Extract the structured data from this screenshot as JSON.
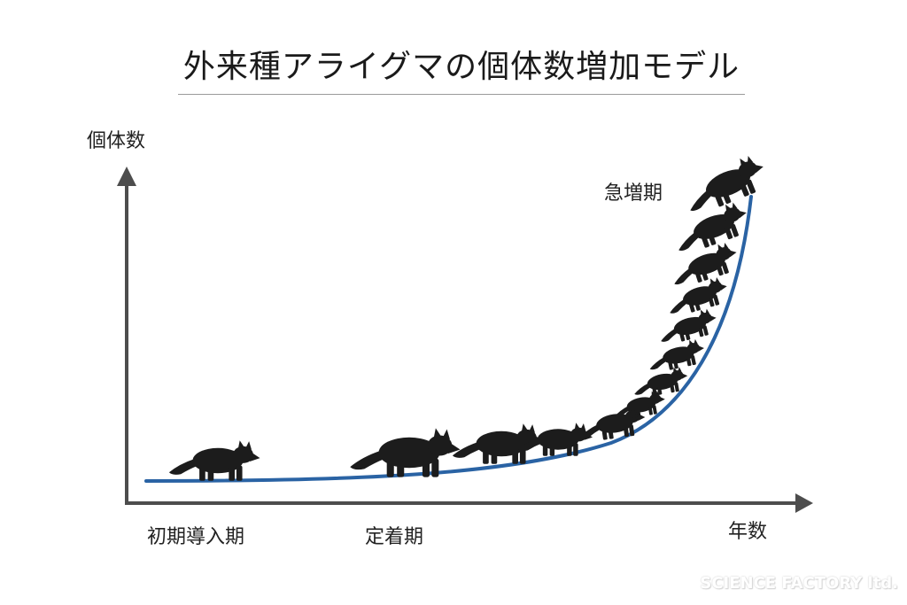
{
  "title": "外来種アライグマの個体数増加モデル",
  "axes": {
    "y_label": "個体数",
    "x_label": "年数"
  },
  "phases": {
    "intro": "初期導入期",
    "settlement": "定着期",
    "rapid_increase": "急増期"
  },
  "watermark": "SCIENCE FACTORY ltd.",
  "colors": {
    "curve": "#2a63a4",
    "axis": "#4d4d4d",
    "silhouette": "#1c1c1c"
  },
  "icons": {
    "population_animal": "raccoon-silhouette"
  }
}
